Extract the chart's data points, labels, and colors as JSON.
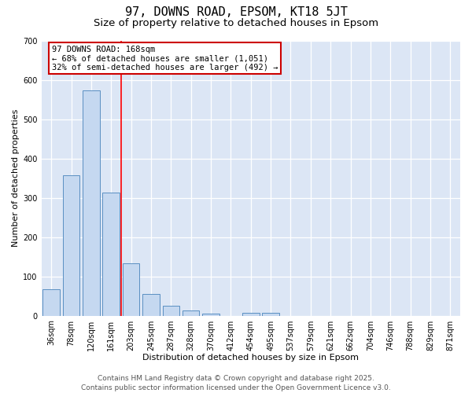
{
  "title": "97, DOWNS ROAD, EPSOM, KT18 5JT",
  "subtitle": "Size of property relative to detached houses in Epsom",
  "xlabel": "Distribution of detached houses by size in Epsom",
  "ylabel": "Number of detached properties",
  "categories": [
    "36sqm",
    "78sqm",
    "120sqm",
    "161sqm",
    "203sqm",
    "245sqm",
    "287sqm",
    "328sqm",
    "370sqm",
    "412sqm",
    "454sqm",
    "495sqm",
    "537sqm",
    "579sqm",
    "621sqm",
    "662sqm",
    "704sqm",
    "746sqm",
    "788sqm",
    "829sqm",
    "871sqm"
  ],
  "values": [
    68,
    358,
    573,
    314,
    133,
    55,
    26,
    14,
    6,
    0,
    8,
    8,
    0,
    0,
    0,
    0,
    0,
    0,
    0,
    0,
    0
  ],
  "bar_color": "#c5d8f0",
  "bar_edge_color": "#5a8fc2",
  "red_line_index": 3,
  "red_line_x": 3.5,
  "annotation_text": "97 DOWNS ROAD: 168sqm\n← 68% of detached houses are smaller (1,051)\n32% of semi-detached houses are larger (492) →",
  "annotation_box_color": "#ffffff",
  "annotation_box_edge_color": "#cc0000",
  "ylim": [
    0,
    700
  ],
  "yticks": [
    0,
    100,
    200,
    300,
    400,
    500,
    600,
    700
  ],
  "background_color": "#dce6f5",
  "grid_color": "#ffffff",
  "footer_line1": "Contains HM Land Registry data © Crown copyright and database right 2025.",
  "footer_line2": "Contains public sector information licensed under the Open Government Licence v3.0.",
  "title_fontsize": 11,
  "subtitle_fontsize": 9.5,
  "axis_label_fontsize": 8,
  "tick_fontsize": 7,
  "annotation_fontsize": 7.5,
  "footer_fontsize": 6.5
}
